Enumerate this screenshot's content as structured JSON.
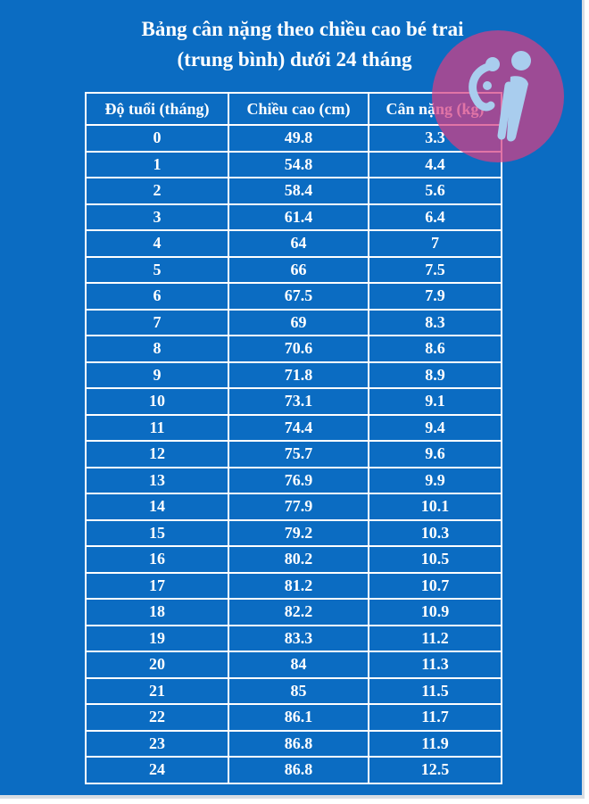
{
  "title": {
    "line1": "Bảng cân nặng theo chiều cao bé trai",
    "line2": "(trung bình) dưới 24 tháng"
  },
  "table": {
    "headers": [
      "Độ tuổi (tháng)",
      "Chiều cao (cm)",
      "Cân nặng (kg)"
    ],
    "rows": [
      [
        "0",
        "49.8",
        "3.3"
      ],
      [
        "1",
        "54.8",
        "4.4"
      ],
      [
        "2",
        "58.4",
        "5.6"
      ],
      [
        "3",
        "61.4",
        "6.4"
      ],
      [
        "4",
        "64",
        "7"
      ],
      [
        "5",
        "66",
        "7.5"
      ],
      [
        "6",
        "67.5",
        "7.9"
      ],
      [
        "7",
        "69",
        "8.3"
      ],
      [
        "8",
        "70.6",
        "8.6"
      ],
      [
        "9",
        "71.8",
        "8.9"
      ],
      [
        "10",
        "73.1",
        "9.1"
      ],
      [
        "11",
        "74.4",
        "9.4"
      ],
      [
        "12",
        "75.7",
        "9.6"
      ],
      [
        "13",
        "76.9",
        "9.9"
      ],
      [
        "14",
        "77.9",
        "10.1"
      ],
      [
        "15",
        "79.2",
        "10.3"
      ],
      [
        "16",
        "80.2",
        "10.5"
      ],
      [
        "17",
        "81.2",
        "10.7"
      ],
      [
        "18",
        "82.2",
        "10.9"
      ],
      [
        "19",
        "83.3",
        "11.2"
      ],
      [
        "20",
        "84",
        "11.3"
      ],
      [
        "21",
        "85",
        "11.5"
      ],
      [
        "22",
        "86.1",
        "11.7"
      ],
      [
        "23",
        "86.8",
        "11.9"
      ],
      [
        "24",
        "86.8",
        "12.5"
      ]
    ]
  },
  "logo": {
    "icon": "mother-and-child-logo-icon",
    "circle_color": "#d63e84",
    "figure_color": "#a9cdee"
  },
  "colors": {
    "background": "#0b6cc2",
    "text": "#ffffff",
    "border": "#ffffff"
  }
}
